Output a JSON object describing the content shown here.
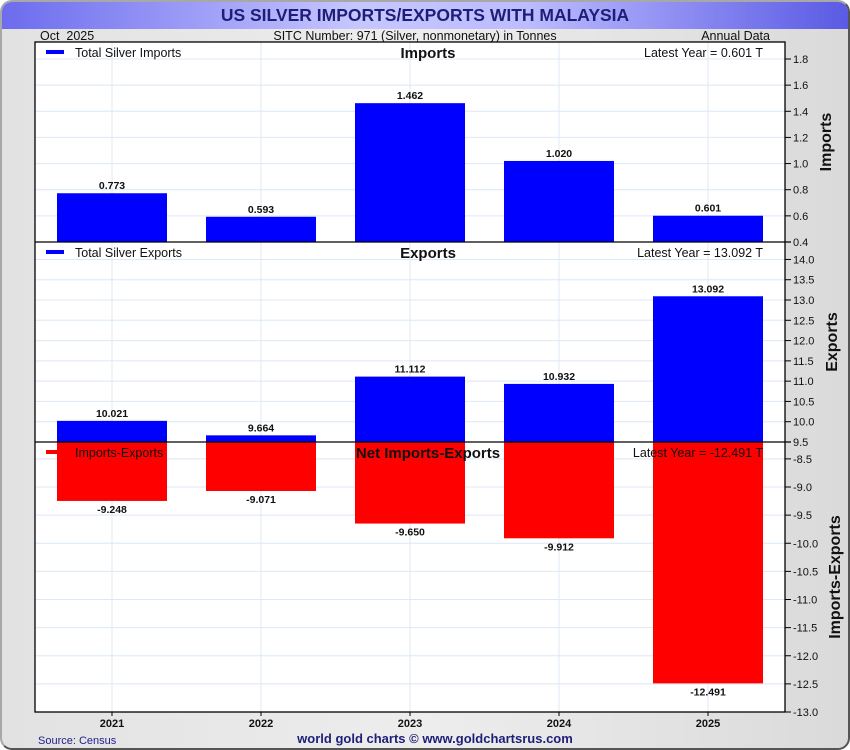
{
  "header": {
    "title": "US SILVER IMPORTS/EXPORTS WITH MALAYSIA",
    "date": "Oct  2025",
    "subtitle": "SITC Number: 971 (Silver, nonmonetary) in Tonnes",
    "frequency": "Annual Data"
  },
  "footer": {
    "source": "Source: Census",
    "credit": "world gold charts © www.goldchartsrus.com"
  },
  "colors": {
    "imports": "#0000ff",
    "exports": "#0000ff",
    "net": "#ff0000",
    "title_text": "#1e1e78"
  },
  "chart_data": [
    {
      "id": "imports",
      "type": "bar",
      "title": "Imports",
      "legend": "Total Silver Imports",
      "legend_placement": "top-left",
      "latest": "Latest Year = 0.601 T",
      "ylabel": "Imports",
      "categories": [
        "2021",
        "2022",
        "2023",
        "2024",
        "2025"
      ],
      "values": [
        0.773,
        0.593,
        1.462,
        1.02,
        0.601
      ],
      "value_labels": [
        "0.773",
        "0.593",
        "1.462",
        "1.020",
        "0.601"
      ],
      "ylim": [
        0.4,
        1.93
      ],
      "yticks": [
        0.4,
        0.6,
        0.8,
        1.0,
        1.2,
        1.4,
        1.6,
        1.8
      ],
      "ytick_labels": [
        "0.4",
        "0.6",
        "0.8",
        "1.0",
        "1.2",
        "1.4",
        "1.6",
        "1.8"
      ],
      "color": "#0000ff",
      "grid": true
    },
    {
      "id": "exports",
      "type": "bar",
      "title": "Exports",
      "legend": "Total Silver Exports",
      "legend_placement": "top-left",
      "latest": "Latest Year = 13.092 T",
      "ylabel": "Exports",
      "categories": [
        "2021",
        "2022",
        "2023",
        "2024",
        "2025"
      ],
      "values": [
        10.021,
        9.664,
        11.112,
        10.932,
        13.092
      ],
      "value_labels": [
        "10.021",
        "9.664",
        "11.112",
        "10.932",
        "13.092"
      ],
      "ylim": [
        9.5,
        14.43
      ],
      "yticks": [
        9.5,
        10.0,
        10.5,
        11.0,
        11.5,
        12.0,
        12.5,
        13.0,
        13.5,
        14.0
      ],
      "ytick_labels": [
        "9.5",
        "10.0",
        "10.5",
        "11.0",
        "11.5",
        "12.0",
        "12.5",
        "13.0",
        "13.5",
        "14.0"
      ],
      "color": "#0000ff",
      "grid": true
    },
    {
      "id": "net",
      "type": "bar",
      "title": "Net Imports-Exports",
      "legend": "Imports-Exports",
      "legend_placement": "top-left",
      "latest": "Latest Year = -12.491 T",
      "ylabel": "Imports-Exports",
      "categories": [
        "2021",
        "2022",
        "2023",
        "2024",
        "2025"
      ],
      "values": [
        -9.248,
        -9.071,
        -9.65,
        -9.912,
        -12.491
      ],
      "value_labels": [
        "-9.248",
        "-9.071",
        "-9.650",
        "-9.912",
        "-12.491"
      ],
      "ylim": [
        -13.0,
        -8.2
      ],
      "yticks": [
        -8.5,
        -9.0,
        -9.5,
        -10.0,
        -10.5,
        -11.0,
        -11.5,
        -12.0,
        -12.5,
        -13.0
      ],
      "ytick_labels": [
        "-8.5",
        "-9.0",
        "-9.5",
        "-10.0",
        "-10.5",
        "-11.0",
        "-11.5",
        "-12.0",
        "-12.5",
        "-13.0"
      ],
      "color": "#ff0000",
      "grid": true
    }
  ]
}
